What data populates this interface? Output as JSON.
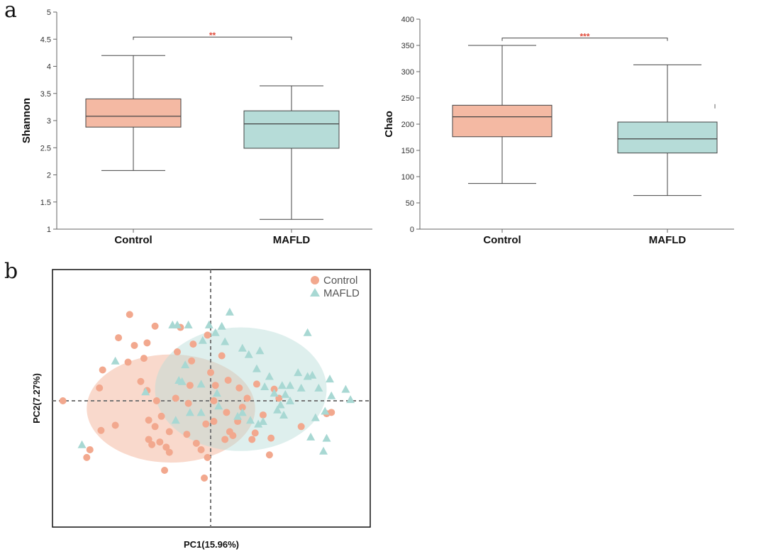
{
  "panels": {
    "a": "a",
    "b": "b"
  },
  "colors": {
    "control_fill": "#f4b9a3",
    "mafld_fill": "#b6dcd8",
    "control_point": "#f2a88e",
    "mafld_point": "#a8d8d3",
    "sig": "#e04a3a",
    "line": "#444444"
  },
  "chart_data": [
    {
      "type": "box",
      "ylabel": "Shannon",
      "categories": [
        "Control",
        "MAFLD"
      ],
      "ylim": [
        1,
        5
      ],
      "yticks": [
        "1",
        "1.5",
        "2",
        "2.5",
        "3",
        "3.5",
        "4",
        "4.5",
        "5"
      ],
      "boxes": [
        {
          "name": "Control",
          "min": 2.08,
          "q1": 2.88,
          "median": 3.08,
          "q3": 3.4,
          "max": 4.2
        },
        {
          "name": "MAFLD",
          "min": 1.18,
          "q1": 2.49,
          "median": 2.94,
          "q3": 3.18,
          "max": 3.64
        }
      ],
      "significance": {
        "label": "**",
        "y": 4.54
      }
    },
    {
      "type": "box",
      "ylabel": "Chao",
      "categories": [
        "Control",
        "MAFLD"
      ],
      "ylim": [
        0,
        400
      ],
      "yticks": [
        "0",
        "50",
        "100",
        "150",
        "200",
        "250",
        "300",
        "350",
        "400"
      ],
      "boxes": [
        {
          "name": "Control",
          "min": 87,
          "q1": 176,
          "median": 214,
          "q3": 236,
          "max": 350
        },
        {
          "name": "MAFLD",
          "min": 64,
          "q1": 145,
          "median": 172,
          "q3": 204,
          "max": 313
        }
      ],
      "outliers": [
        {
          "name": "MAFLD",
          "y": 234
        }
      ],
      "significance": {
        "label": "***",
        "y": 364
      }
    },
    {
      "type": "scatter",
      "xlabel": "PC1(15.96%)",
      "ylabel": "PC2(7.27%)",
      "xlim": [
        -10,
        10
      ],
      "ylim": [
        -10,
        10
      ],
      "legend": [
        "Control",
        "MAFLD"
      ],
      "legend_position": "top-right",
      "series": [
        {
          "name": "Control",
          "marker": "circle",
          "ellipse": {
            "cx": -2.5,
            "cy": -0.6,
            "rx": 5.3,
            "ry": 4.2
          },
          "points": [
            [
              -9.3,
              0.0
            ],
            [
              -7.6,
              -3.8
            ],
            [
              -7.8,
              -4.4
            ],
            [
              -7.0,
              1.0
            ],
            [
              -6.9,
              -2.3
            ],
            [
              -6.8,
              2.4
            ],
            [
              -5.8,
              4.9
            ],
            [
              -5.1,
              6.7
            ],
            [
              -4.8,
              4.3
            ],
            [
              -4.4,
              1.5
            ],
            [
              -4.0,
              0.8
            ],
            [
              -3.9,
              -3.0
            ],
            [
              -3.4,
              0.0
            ],
            [
              -4.2,
              3.3
            ],
            [
              -4.0,
              4.5
            ],
            [
              -3.2,
              -3.2
            ],
            [
              -2.8,
              -3.6
            ],
            [
              -2.9,
              -5.4
            ],
            [
              -2.6,
              -4.0
            ],
            [
              -3.7,
              -3.4
            ],
            [
              -3.5,
              -2.0
            ],
            [
              -3.1,
              -1.2
            ],
            [
              -2.2,
              0.2
            ],
            [
              -2.1,
              3.8
            ],
            [
              -1.1,
              4.4
            ],
            [
              -1.3,
              1.2
            ],
            [
              -1.2,
              3.1
            ],
            [
              -0.9,
              -3.3
            ],
            [
              -0.6,
              -3.8
            ],
            [
              -0.2,
              -4.4
            ],
            [
              -0.3,
              -1.8
            ],
            [
              -1.5,
              -2.6
            ],
            [
              0.2,
              -1.6
            ],
            [
              0.0,
              2.2
            ],
            [
              0.3,
              1.2
            ],
            [
              1.1,
              1.6
            ],
            [
              1.0,
              -0.9
            ],
            [
              1.2,
              -2.4
            ],
            [
              0.9,
              -3.0
            ],
            [
              1.4,
              -2.7
            ],
            [
              1.7,
              -1.6
            ],
            [
              2.3,
              0.2
            ],
            [
              2.8,
              -2.5
            ],
            [
              2.6,
              -3.0
            ],
            [
              2.9,
              1.3
            ],
            [
              1.8,
              1.0
            ],
            [
              0.7,
              3.5
            ],
            [
              3.3,
              -1.1
            ],
            [
              3.8,
              -2.9
            ],
            [
              4.3,
              0.2
            ],
            [
              4.0,
              0.9
            ],
            [
              3.7,
              -4.2
            ],
            [
              5.7,
              -2.0
            ],
            [
              7.6,
              -0.9
            ],
            [
              7.3,
              -1.0
            ],
            [
              -0.2,
              5.1
            ],
            [
              -1.9,
              5.7
            ],
            [
              -3.5,
              5.8
            ],
            [
              -6.0,
              -1.9
            ],
            [
              -5.2,
              3.0
            ],
            [
              -3.9,
              -1.5
            ],
            [
              -2.6,
              -2.4
            ],
            [
              -0.4,
              -6.0
            ],
            [
              2.0,
              -0.5
            ],
            [
              0.2,
              0.0
            ],
            [
              -1.4,
              -0.2
            ]
          ]
        },
        {
          "name": "MAFLD",
          "marker": "triangle",
          "ellipse": {
            "cx": 1.9,
            "cy": 0.9,
            "rx": 5.4,
            "ry": 4.8
          },
          "points": [
            [
              -8.1,
              -3.4
            ],
            [
              -6.0,
              3.1
            ],
            [
              -4.1,
              0.7
            ],
            [
              -2.4,
              5.9
            ],
            [
              -2.1,
              5.9
            ],
            [
              -1.4,
              5.9
            ],
            [
              -0.1,
              5.9
            ],
            [
              0.3,
              5.3
            ],
            [
              -0.5,
              4.7
            ],
            [
              0.7,
              5.8
            ],
            [
              1.2,
              6.9
            ],
            [
              0.9,
              4.6
            ],
            [
              -1.6,
              2.8
            ],
            [
              -1.8,
              1.5
            ],
            [
              -0.6,
              1.3
            ],
            [
              0.4,
              0.6
            ],
            [
              0.5,
              -0.4
            ],
            [
              -0.6,
              -0.9
            ],
            [
              -1.3,
              -0.9
            ],
            [
              -2.2,
              -1.5
            ],
            [
              -2.0,
              1.6
            ],
            [
              2.0,
              4.1
            ],
            [
              3.1,
              3.9
            ],
            [
              2.9,
              2.5
            ],
            [
              3.7,
              1.9
            ],
            [
              3.4,
              1.1
            ],
            [
              4.5,
              1.2
            ],
            [
              4.7,
              0.5
            ],
            [
              4.2,
              -0.7
            ],
            [
              4.4,
              -0.3
            ],
            [
              4.6,
              -1.1
            ],
            [
              5.0,
              1.2
            ],
            [
              5.5,
              2.2
            ],
            [
              5.7,
              1.0
            ],
            [
              6.1,
              1.9
            ],
            [
              6.4,
              2.0
            ],
            [
              6.8,
              1.0
            ],
            [
              7.5,
              1.7
            ],
            [
              7.6,
              0.4
            ],
            [
              7.2,
              -0.8
            ],
            [
              8.5,
              0.9
            ],
            [
              8.8,
              0.1
            ],
            [
              6.6,
              -1.3
            ],
            [
              6.3,
              -2.8
            ],
            [
              7.3,
              -2.9
            ],
            [
              7.1,
              -3.9
            ],
            [
              2.4,
              3.6
            ],
            [
              2.0,
              -0.9
            ],
            [
              2.5,
              -1.5
            ],
            [
              3.0,
              -1.8
            ],
            [
              3.3,
              -1.6
            ],
            [
              1.7,
              -1.2
            ],
            [
              6.1,
              5.3
            ],
            [
              5.0,
              0.0
            ],
            [
              4.0,
              0.6
            ]
          ]
        }
      ]
    }
  ]
}
